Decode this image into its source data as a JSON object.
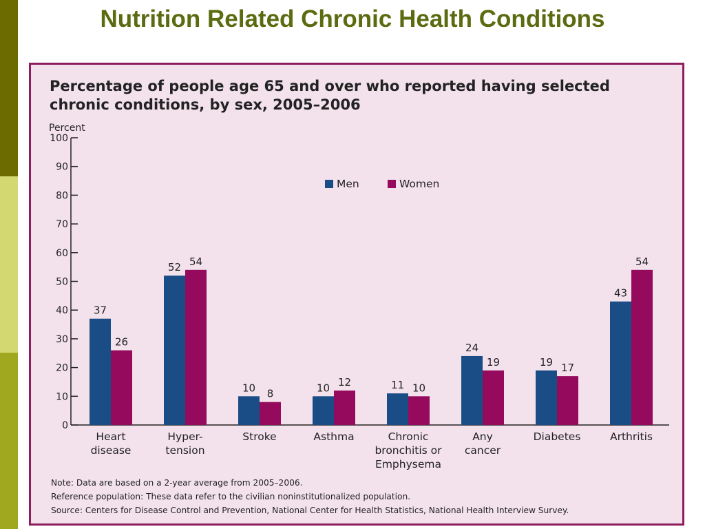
{
  "slide": {
    "title": "Nutrition Related Chronic Health Conditions",
    "title_color": "#5a6b10",
    "side_stripe_colors": [
      "#6b6b00",
      "#d4d870",
      "#a0a820"
    ]
  },
  "panel": {
    "background": "#f3e2ec",
    "border_color": "#8f1d5e"
  },
  "chart_data": {
    "type": "bar",
    "title": "Percentage of people age 65 and over who reported having selected chronic conditions, by sex, 2005–2006",
    "ylabel": "Percent",
    "xlabel": "",
    "ylim": [
      0,
      100
    ],
    "yticks": [
      0,
      10,
      20,
      30,
      40,
      50,
      60,
      70,
      80,
      90,
      100
    ],
    "categories": [
      [
        "Heart",
        "disease"
      ],
      [
        "Hyper-",
        "tension"
      ],
      [
        "Stroke"
      ],
      [
        "Asthma"
      ],
      [
        "Chronic",
        "bronchitis or",
        "Emphysema"
      ],
      [
        "Any",
        "cancer"
      ],
      [
        "Diabetes"
      ],
      [
        "Arthritis"
      ]
    ],
    "series": [
      {
        "name": "Men",
        "color": "#1a4d85",
        "values": [
          37,
          52,
          10,
          10,
          11,
          24,
          19,
          43
        ]
      },
      {
        "name": "Women",
        "color": "#960a5e",
        "values": [
          26,
          54,
          8,
          12,
          10,
          19,
          17,
          54
        ]
      }
    ],
    "legend_position": "top-center",
    "grid": false
  },
  "notes": [
    "Note: Data are based on a 2-year average from 2005–2006.",
    "Reference population: These data refer to the civilian noninstitutionalized population.",
    "Source: Centers for Disease Control and Prevention, National Center for Health Statistics, National Health Interview Survey."
  ]
}
